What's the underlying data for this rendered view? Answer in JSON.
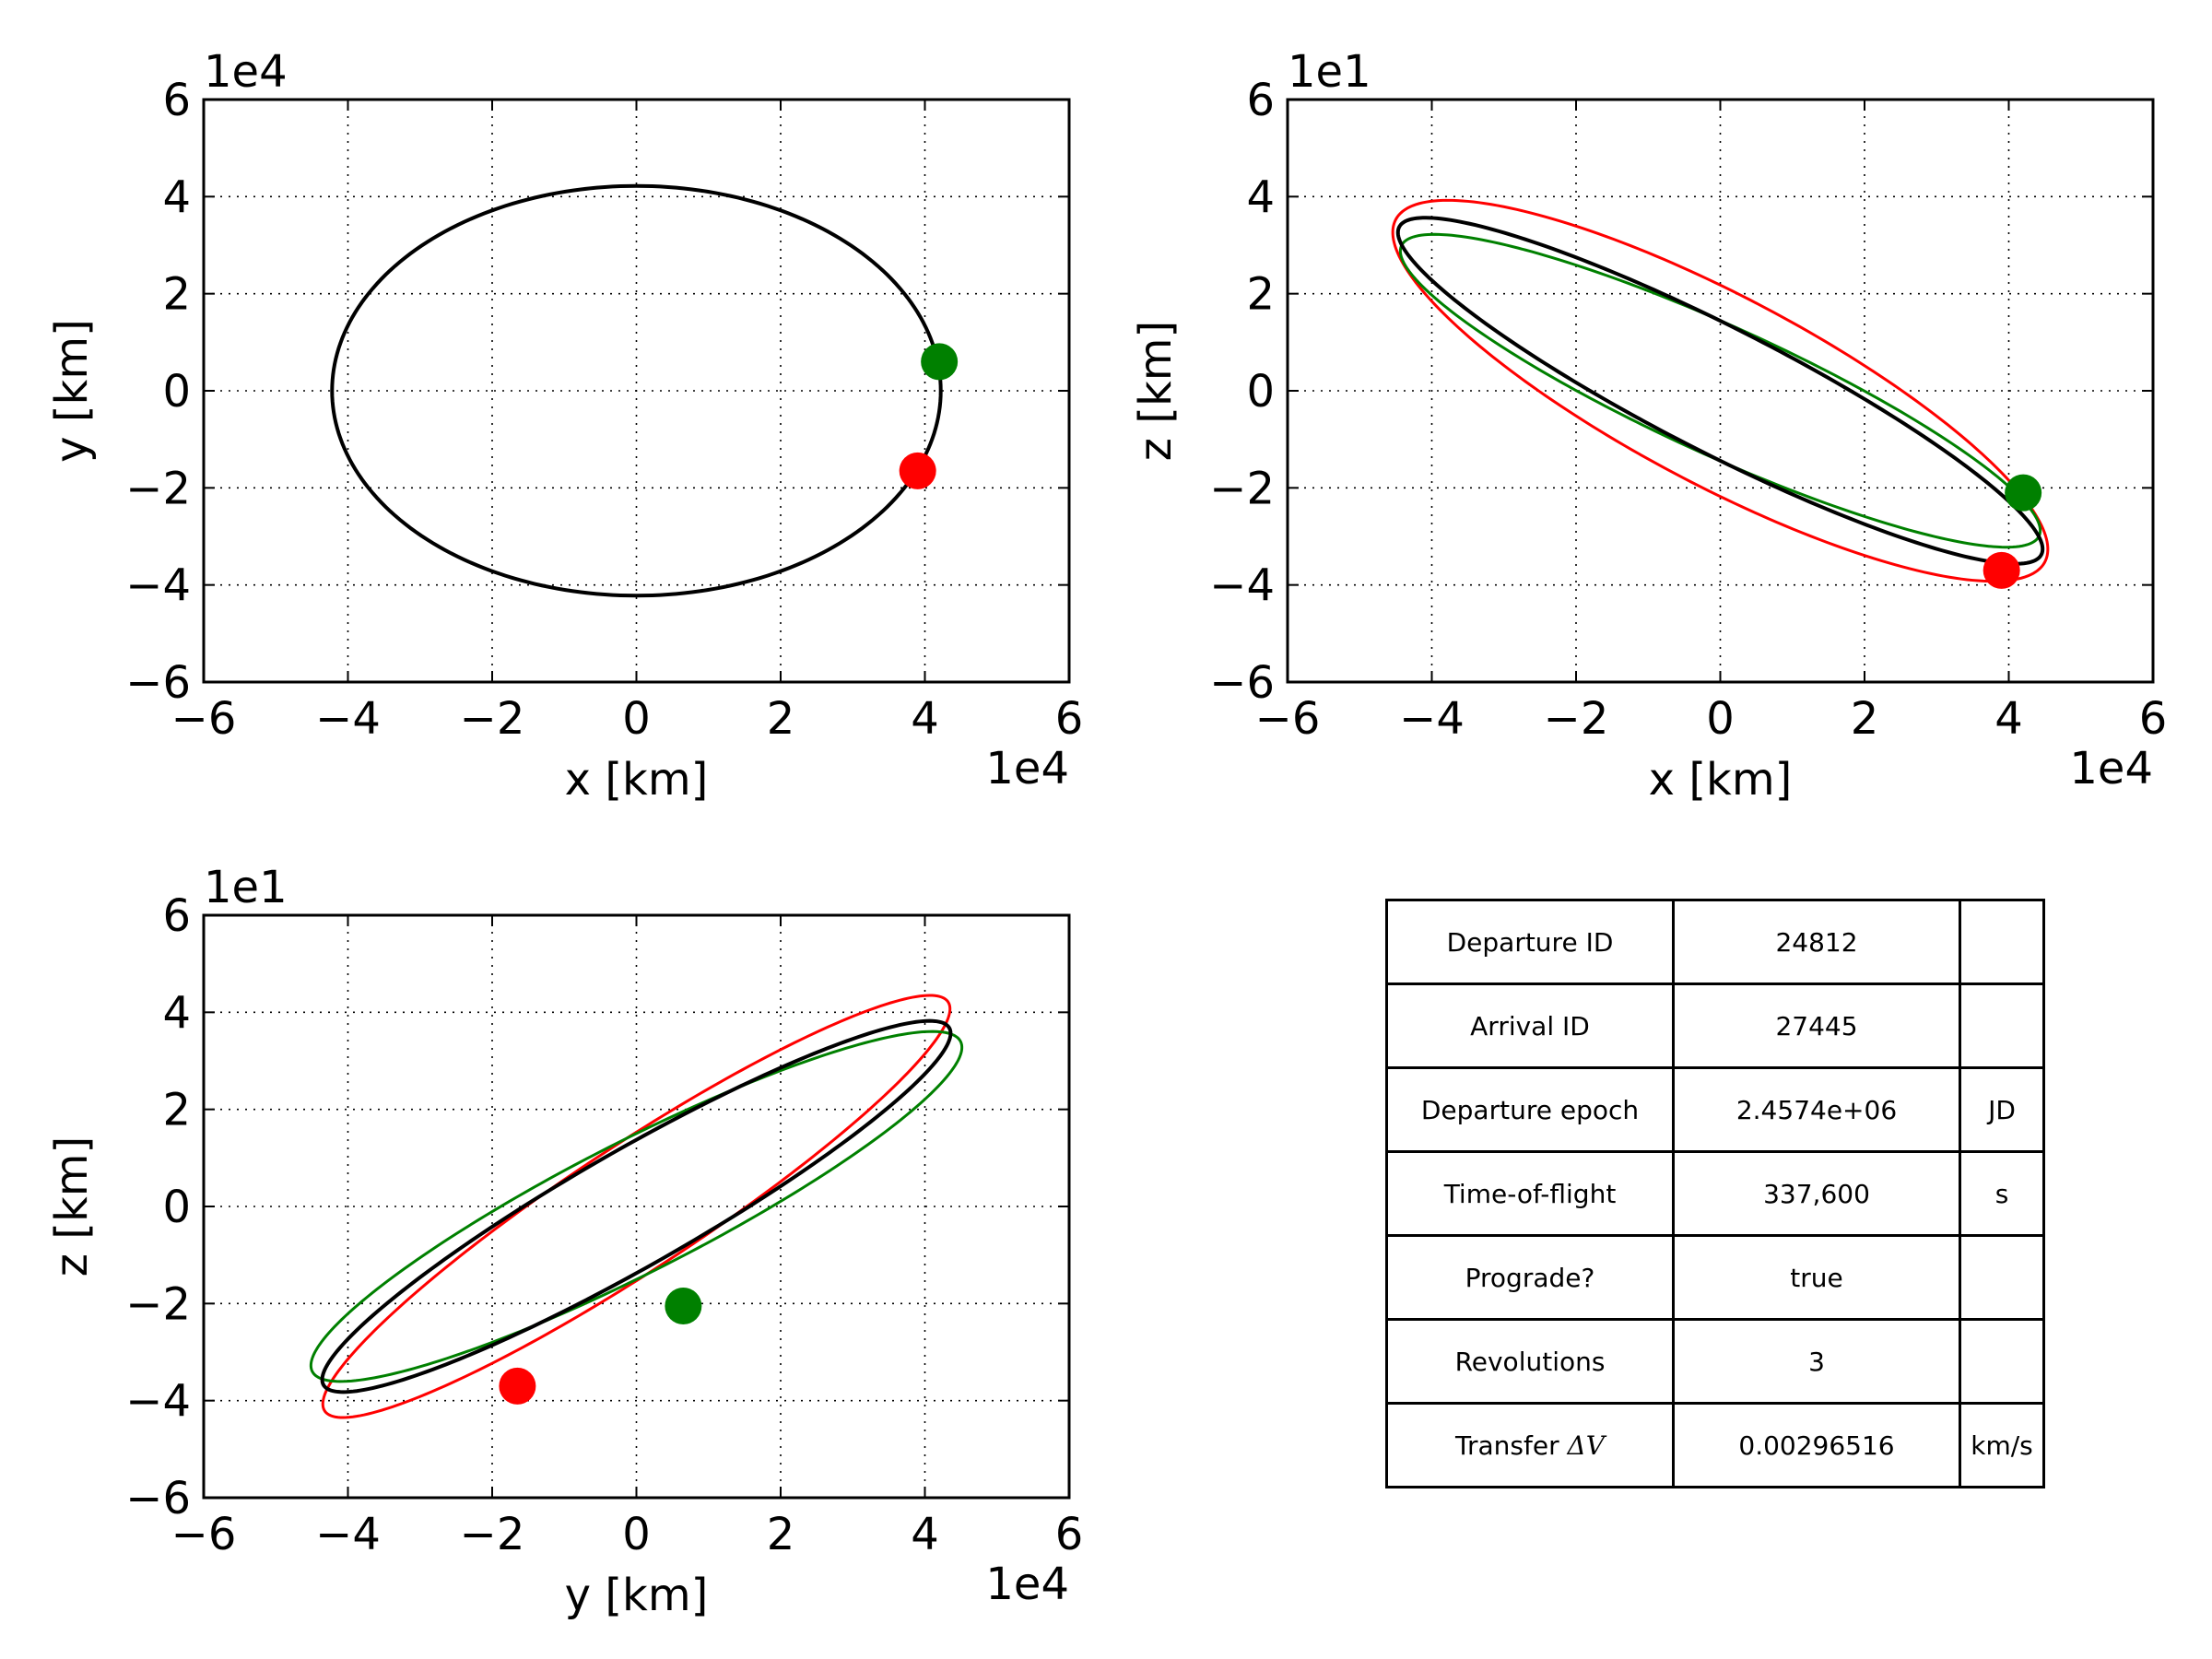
{
  "colors": {
    "departure": "#ff0000",
    "arrival": "#008000",
    "transfer": "#000000"
  },
  "chart_data": [
    {
      "type": "line",
      "xlabel": "x [km]",
      "ylabel": "y [km]",
      "x_exponent": "1e4",
      "y_exponent": "1e4",
      "xlim": [
        -6,
        6
      ],
      "ylim": [
        -6,
        6
      ],
      "xticks": [
        "−6",
        "−4",
        "−2",
        "0",
        "2",
        "4",
        "6"
      ],
      "yticks": [
        "−6",
        "−4",
        "−2",
        "0",
        "2",
        "4",
        "6"
      ],
      "grid": true,
      "series": [
        {
          "role": "departure-orbit",
          "color": "#ff0000",
          "ellipse": {
            "center": [
              0,
              0
            ],
            "a": 4.22,
            "b": 4.22,
            "angle_deg": 0
          }
        },
        {
          "role": "arrival-orbit",
          "color": "#008000",
          "ellipse": {
            "center": [
              0,
              0
            ],
            "a": 4.22,
            "b": 4.22,
            "angle_deg": 0
          }
        },
        {
          "role": "transfer-orbit",
          "color": "#000000",
          "ellipse": {
            "center": [
              0,
              0
            ],
            "a": 4.22,
            "b": 4.22,
            "angle_deg": 0
          }
        }
      ],
      "markers": [
        {
          "role": "departure-point",
          "color": "#ff0000",
          "x": 3.9,
          "y": -1.65
        },
        {
          "role": "arrival-point",
          "color": "#008000",
          "x": 4.2,
          "y": 0.6
        }
      ]
    },
    {
      "type": "line",
      "xlabel": "x [km]",
      "ylabel": "z [km]",
      "x_exponent": "1e4",
      "y_exponent": "1e1",
      "xlim": [
        -6,
        6
      ],
      "ylim": [
        -6,
        6
      ],
      "xticks": [
        "−6",
        "−4",
        "−2",
        "0",
        "2",
        "4",
        "6"
      ],
      "yticks": [
        "−6",
        "−4",
        "−2",
        "0",
        "2",
        "4",
        "6"
      ],
      "grid": true,
      "series": [
        {
          "role": "departure-orbit",
          "color": "#ff0000",
          "ellipse": {
            "center": [
              0,
              0
            ],
            "a": 5.75,
            "b": 1.72,
            "angle_deg": -40
          }
        },
        {
          "role": "arrival-orbit",
          "color": "#008000",
          "ellipse": {
            "center": [
              0,
              0
            ],
            "a": 5.35,
            "b": 1.2,
            "angle_deg": -35
          }
        },
        {
          "role": "transfer-orbit",
          "color": "#000000",
          "ellipse": {
            "center": [
              0,
              0
            ],
            "a": 5.6,
            "b": 1.15,
            "angle_deg": -38
          }
        }
      ],
      "markers": [
        {
          "role": "departure-point",
          "color": "#ff0000",
          "x": 3.9,
          "y": -3.7
        },
        {
          "role": "arrival-point",
          "color": "#008000",
          "x": 4.2,
          "y": -2.1
        }
      ]
    },
    {
      "type": "line",
      "xlabel": "y [km]",
      "ylabel": "z [km]",
      "x_exponent": "1e4",
      "y_exponent": "1e1",
      "xlim": [
        -6,
        6
      ],
      "ylim": [
        -6,
        6
      ],
      "xticks": [
        "−6",
        "−4",
        "−2",
        "0",
        "2",
        "4",
        "6"
      ],
      "yticks": [
        "−6",
        "−4",
        "−2",
        "0",
        "2",
        "4",
        "6"
      ],
      "grid": true,
      "series": [
        {
          "role": "departure-orbit",
          "color": "#ff0000",
          "ellipse": {
            "center": [
              0,
              0
            ],
            "a": 6.05,
            "b": 1.1,
            "angle_deg": 45
          }
        },
        {
          "role": "arrival-orbit",
          "color": "#008000",
          "ellipse": {
            "center": [
              0,
              0
            ],
            "a": 5.65,
            "b": 1.2,
            "angle_deg": 38
          }
        },
        {
          "role": "transfer-orbit",
          "color": "#000000",
          "ellipse": {
            "center": [
              0,
              0
            ],
            "a": 5.7,
            "b": 1.05,
            "angle_deg": 41
          }
        }
      ],
      "markers": [
        {
          "role": "departure-point",
          "color": "#ff0000",
          "x": -1.65,
          "y": -3.7
        },
        {
          "role": "arrival-point",
          "color": "#008000",
          "x": 0.65,
          "y": -2.05
        }
      ]
    }
  ],
  "table": {
    "rows": [
      {
        "label": "Departure ID",
        "value": "24812",
        "unit": ""
      },
      {
        "label": "Arrival ID",
        "value": "27445",
        "unit": ""
      },
      {
        "label": "Departure epoch",
        "value": "2.4574e+06",
        "unit": "JD"
      },
      {
        "label": "Time-of-flight",
        "value": "337,600",
        "unit": "s"
      },
      {
        "label": "Prograde?",
        "value": "true",
        "unit": ""
      },
      {
        "label": "Revolutions",
        "value": "3",
        "unit": ""
      },
      {
        "label": "Transfer",
        "label_symbol": "ΔV",
        "value": "0.00296516",
        "unit": "km/s"
      }
    ]
  }
}
